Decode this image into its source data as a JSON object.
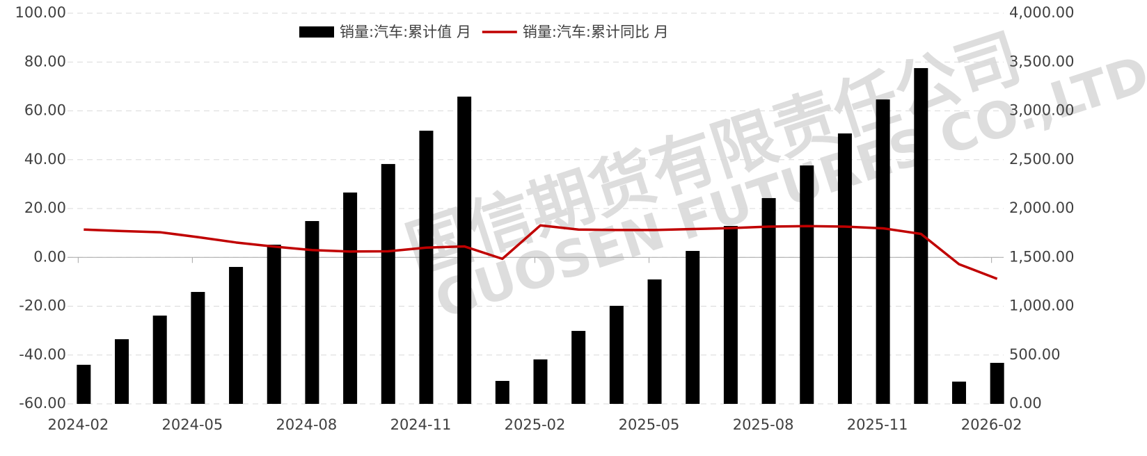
{
  "chart_data": {
    "type": "bar_line",
    "watermark": [
      "国信期货有限责任公司",
      "GUOSEN FUTURES CO.,LTD."
    ],
    "categories": [
      "2024-02",
      null,
      null,
      "2024-05",
      null,
      null,
      "2024-08",
      null,
      null,
      "2024-11",
      null,
      null,
      "2025-02",
      null,
      null,
      "2025-05",
      null,
      null,
      "2025-08",
      null,
      null,
      "2025-11",
      null,
      null,
      "2026-02"
    ],
    "series": [
      {
        "name": "销量:汽车:累计值 月",
        "type": "bar",
        "axis": "y2",
        "color": "#000000",
        "values": [
          400,
          662,
          904,
          1146,
          1402,
          1630,
          1872,
          2164,
          2456,
          2797,
          3146,
          235,
          455,
          747,
          1004,
          1274,
          1566,
          1822,
          2107,
          2441,
          2769,
          3117,
          3438,
          228,
          420
        ]
      },
      {
        "name": "销量:汽车:累计同比 月",
        "type": "line",
        "axis": "y",
        "color": "#c00000",
        "values": [
          11.4,
          10.8,
          10.3,
          8.3,
          6.1,
          4.4,
          3.0,
          2.4,
          2.5,
          4.0,
          4.5,
          -0.6,
          13.1,
          11.4,
          11.2,
          11.2,
          11.6,
          12.0,
          12.6,
          12.8,
          12.6,
          11.9,
          9.6,
          -2.8,
          -8.8
        ]
      }
    ],
    "ylim": [
      -60,
      100
    ],
    "yticks": [
      {
        "value": -60,
        "label": "-60.00"
      },
      {
        "value": -40,
        "label": "-40.00"
      },
      {
        "value": -20,
        "label": "-20.00"
      },
      {
        "value": 0,
        "label": "0.00"
      },
      {
        "value": 20,
        "label": "20.00"
      },
      {
        "value": 40,
        "label": "40.00"
      },
      {
        "value": 60,
        "label": "60.00"
      },
      {
        "value": 80,
        "label": "80.00"
      },
      {
        "value": 100,
        "label": "100.00"
      }
    ],
    "y2lim": [
      0,
      4000
    ],
    "y2ticks": [
      {
        "value": 0,
        "label": "0.00"
      },
      {
        "value": 500,
        "label": "500.00"
      },
      {
        "value": 1000,
        "label": "1,000.00"
      },
      {
        "value": 1500,
        "label": "1,500.00"
      },
      {
        "value": 2000,
        "label": "2,000.00"
      },
      {
        "value": 2500,
        "label": "2,500.00"
      },
      {
        "value": 3000,
        "label": "3,000.00"
      },
      {
        "value": 3500,
        "label": "3,500.00"
      },
      {
        "value": 4000,
        "label": "4,000.00"
      }
    ],
    "grid": true,
    "legend": "top"
  }
}
